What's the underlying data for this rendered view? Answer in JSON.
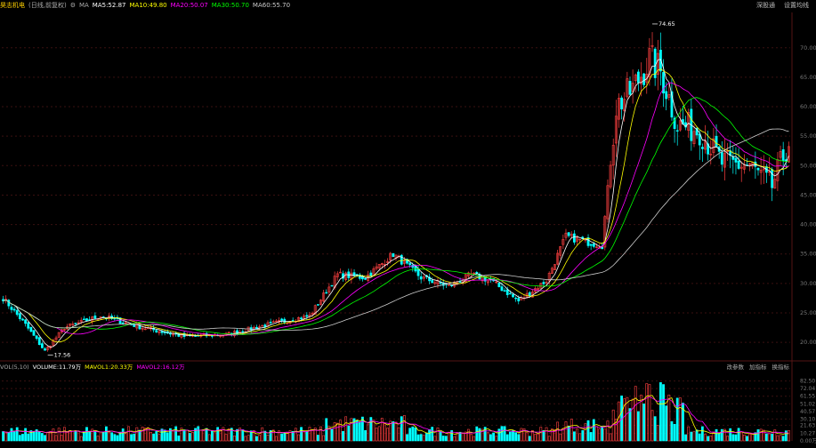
{
  "header": {
    "stock_name": "昊志机电",
    "period_label": "(日线,前复权)",
    "ma_label": "MA",
    "ma5": "MA5:52.87",
    "ma10": "MA10:49.80",
    "ma20": "MA20:50.07",
    "ma30": "MA30:50.70",
    "ma60": "MA60:55.70",
    "links": [
      "深股通",
      "设置均线"
    ]
  },
  "volume_header": {
    "vol_label": "VOL(5,10)",
    "volume": "VOLUME:11.79万",
    "mavol1": "MAVOL1:20.33万",
    "mavol2": "MAVOL2:16.12万",
    "links": [
      "改参数",
      "加指标",
      "换指标"
    ]
  },
  "annotations": {
    "high": "74.65",
    "low": "17.56"
  },
  "colors": {
    "up": "#ff4040",
    "down": "#00ffff",
    "ma5": "#ffffff",
    "ma10": "#ffff00",
    "ma20": "#ff00ff",
    "ma30": "#00ff00",
    "ma60": "#cccccc",
    "grid": "#3a1010",
    "axis_text": "#777777"
  },
  "chart_data": [
    {
      "type": "candlestick",
      "title": "昊志机电 (日线,前复权)",
      "ylim": [
        17,
        76
      ],
      "y_ticks": [
        20,
        25,
        30,
        35,
        40,
        45,
        50,
        55,
        60,
        65,
        70
      ],
      "grid": true,
      "series_keyframes": [
        {
          "i": 0,
          "close": 27.5
        },
        {
          "i": 8,
          "close": 23.0
        },
        {
          "i": 15,
          "close": 18.5
        },
        {
          "i": 22,
          "close": 22.5
        },
        {
          "i": 35,
          "close": 24.5
        },
        {
          "i": 50,
          "close": 22.5
        },
        {
          "i": 65,
          "close": 21.0
        },
        {
          "i": 80,
          "close": 21.3
        },
        {
          "i": 95,
          "close": 23.0
        },
        {
          "i": 110,
          "close": 24.5
        },
        {
          "i": 120,
          "close": 31.5
        },
        {
          "i": 130,
          "close": 31.0
        },
        {
          "i": 140,
          "close": 35.0
        },
        {
          "i": 150,
          "close": 31.0
        },
        {
          "i": 160,
          "close": 29.5
        },
        {
          "i": 168,
          "close": 31.5
        },
        {
          "i": 175,
          "close": 30.5
        },
        {
          "i": 185,
          "close": 27.0
        },
        {
          "i": 195,
          "close": 30.5
        },
        {
          "i": 202,
          "close": 38.0
        },
        {
          "i": 210,
          "close": 37.0
        },
        {
          "i": 215,
          "close": 36.5
        },
        {
          "i": 220,
          "close": 60.0
        },
        {
          "i": 226,
          "close": 63.0
        },
        {
          "i": 232,
          "close": 68.0
        },
        {
          "i": 236,
          "close": 66.0
        },
        {
          "i": 242,
          "close": 57.0
        },
        {
          "i": 250,
          "close": 56.0
        },
        {
          "i": 258,
          "close": 50.5
        },
        {
          "i": 268,
          "close": 50.0
        },
        {
          "i": 276,
          "close": 46.5
        },
        {
          "i": 282,
          "close": 54.0
        }
      ],
      "count": 283
    },
    {
      "type": "bar",
      "title": "VOL(5,10)",
      "ylim": [
        0,
        93
      ],
      "y_ticks": [
        0,
        10.27,
        21.63,
        30.1,
        40.57,
        51.02,
        61.55,
        72.04,
        82.5
      ],
      "y_tick_labels": [
        "0.00万",
        "10.27",
        "21.63",
        "30.10",
        "40.57",
        "51.02",
        "61.55",
        "72.04",
        "82.50"
      ],
      "unit": "万"
    }
  ]
}
